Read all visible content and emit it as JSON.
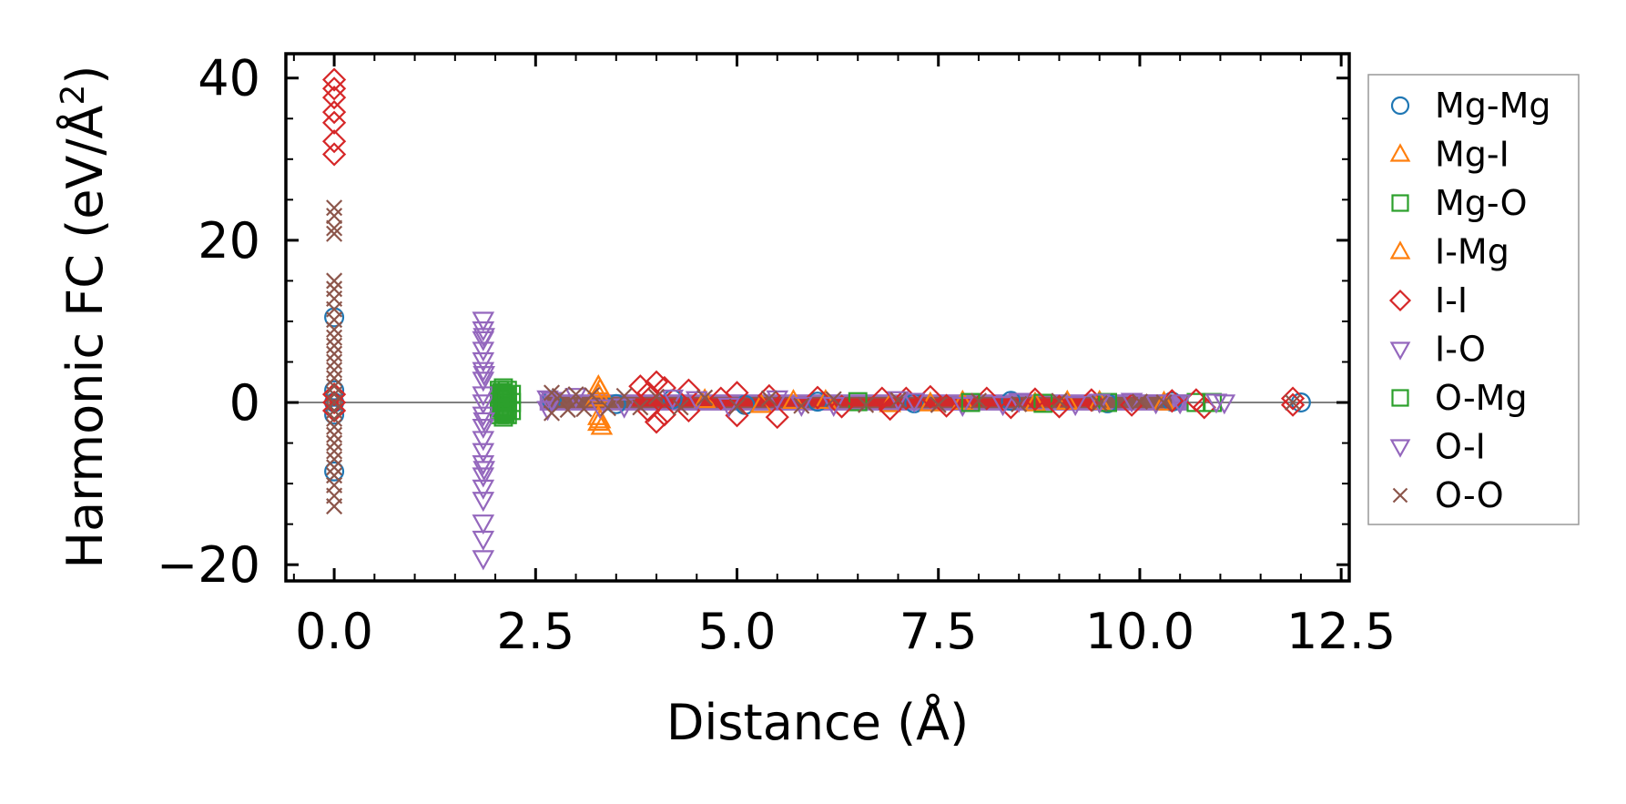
{
  "chart_data": {
    "type": "scatter",
    "title": "",
    "xlabel": "Distance (Å)",
    "ylabel_prefix": "Harmonic FC (eV/Å",
    "ylabel_sup": "2",
    "ylabel_suffix": ")",
    "xlim": [
      -0.6,
      12.6
    ],
    "ylim": [
      -22,
      43
    ],
    "x_ticks": [
      0.0,
      2.5,
      5.0,
      7.5,
      10.0,
      12.5
    ],
    "x_tick_labels": [
      "0.0",
      "2.5",
      "5.0",
      "7.5",
      "10.0",
      "12.5"
    ],
    "y_ticks": [
      -20,
      0,
      20,
      40
    ],
    "y_tick_labels": [
      "−20",
      "0",
      "20",
      "40"
    ],
    "zero_line": true,
    "legend_position": "right-outside",
    "series": [
      {
        "name": "Mg-Mg",
        "marker": "circle",
        "color": "#1f77b4",
        "points": [
          [
            0,
            0
          ],
          [
            0,
            1.5
          ],
          [
            0,
            -1.5
          ],
          [
            0,
            10.5
          ],
          [
            0,
            -8.5
          ],
          [
            2.7,
            0.3
          ],
          [
            3.5,
            -0.2
          ],
          [
            4.2,
            0.4
          ],
          [
            5.1,
            -0.3
          ],
          [
            6.0,
            0.1
          ],
          [
            7.2,
            -0.1
          ],
          [
            8.4,
            0.2
          ],
          [
            9.6,
            -0.1
          ],
          [
            10.4,
            0.1
          ],
          [
            12.0,
            0
          ]
        ]
      },
      {
        "name": "Mg-I",
        "marker": "triangle-up",
        "color": "#ff7f0e",
        "points": [
          [
            3.28,
            2.0
          ],
          [
            3.28,
            1.0
          ],
          [
            3.28,
            -1.8
          ],
          [
            3.28,
            -2.5
          ],
          [
            3.32,
            -3.0
          ],
          [
            4.6,
            0.3
          ],
          [
            5.3,
            -0.3
          ],
          [
            6.1,
            0.2
          ],
          [
            6.9,
            -0.2
          ],
          [
            7.8,
            0.1
          ],
          [
            8.7,
            -0.1
          ],
          [
            9.5,
            0.1
          ],
          [
            10.3,
            0
          ]
        ]
      },
      {
        "name": "Mg-O",
        "marker": "square",
        "color": "#2ca02c",
        "points": [
          [
            2.05,
            1.5
          ],
          [
            2.05,
            1.0
          ],
          [
            2.05,
            0.5
          ],
          [
            2.05,
            0
          ],
          [
            2.05,
            -0.5
          ],
          [
            2.05,
            -1.0
          ],
          [
            2.05,
            -1.5
          ],
          [
            2.1,
            1.8
          ],
          [
            2.1,
            1.2
          ],
          [
            2.1,
            0.6
          ],
          [
            2.1,
            0
          ],
          [
            2.1,
            -0.6
          ],
          [
            2.1,
            -1.2
          ],
          [
            2.1,
            -1.8
          ],
          [
            2.15,
            1.5
          ],
          [
            2.15,
            0.8
          ],
          [
            2.15,
            0
          ],
          [
            2.15,
            -0.8
          ],
          [
            2.15,
            -1.5
          ],
          [
            2.2,
            1.0
          ],
          [
            2.2,
            0
          ],
          [
            2.2,
            -1.0
          ],
          [
            6.5,
            0.1
          ],
          [
            8.8,
            -0.1
          ],
          [
            10.7,
            0
          ]
        ]
      },
      {
        "name": "I-Mg",
        "marker": "triangle-up",
        "color": "#ff7f0e",
        "points": [
          [
            3.3,
            1.6
          ],
          [
            3.3,
            -2.2
          ],
          [
            3.25,
            0.5
          ],
          [
            5.7,
            0.2
          ],
          [
            7.4,
            -0.1
          ],
          [
            9.1,
            0.1
          ]
        ]
      },
      {
        "name": "I-I",
        "marker": "diamond",
        "color": "#d62728",
        "points": [
          [
            0,
            39.8
          ],
          [
            0,
            38.7
          ],
          [
            0,
            37.6
          ],
          [
            0,
            35.8
          ],
          [
            0,
            34.5
          ],
          [
            0,
            32.2
          ],
          [
            0,
            30.6
          ],
          [
            0,
            1.0
          ],
          [
            0,
            0
          ],
          [
            0,
            -1.0
          ],
          [
            3.8,
            2.0
          ],
          [
            3.9,
            1.2
          ],
          [
            3.9,
            -1.0
          ],
          [
            4.0,
            2.5
          ],
          [
            4.0,
            -2.4
          ],
          [
            4.1,
            1.8
          ],
          [
            4.1,
            -1.5
          ],
          [
            4.4,
            1.5
          ],
          [
            4.4,
            -1.0
          ],
          [
            4.8,
            0.5
          ],
          [
            5.0,
            1.2
          ],
          [
            5.0,
            -1.6
          ],
          [
            5.4,
            0.8
          ],
          [
            5.5,
            -1.8
          ],
          [
            6.0,
            0.6
          ],
          [
            6.3,
            -0.5
          ],
          [
            6.8,
            0.5
          ],
          [
            6.9,
            -0.8
          ],
          [
            7.1,
            0.5
          ],
          [
            7.4,
            0.7
          ],
          [
            7.6,
            -0.4
          ],
          [
            8.1,
            0.5
          ],
          [
            8.4,
            -0.6
          ],
          [
            8.7,
            0.4
          ],
          [
            9.0,
            -0.5
          ],
          [
            9.4,
            0.3
          ],
          [
            9.9,
            -0.3
          ],
          [
            10.4,
            0.2
          ],
          [
            10.7,
            0.3
          ],
          [
            10.8,
            -0.6
          ],
          [
            11.9,
            0.5
          ],
          [
            11.9,
            -0.3
          ]
        ]
      },
      {
        "name": "I-O",
        "marker": "triangle-down",
        "color": "#9467bd",
        "points": [
          [
            1.85,
            10.2
          ],
          [
            1.85,
            9.0
          ],
          [
            1.85,
            7.8
          ],
          [
            1.85,
            6.5
          ],
          [
            1.85,
            5.2
          ],
          [
            1.85,
            4.0
          ],
          [
            1.85,
            2.8
          ],
          [
            1.85,
            1.0
          ],
          [
            1.85,
            0
          ],
          [
            1.85,
            -1.5
          ],
          [
            1.85,
            -3.0
          ],
          [
            1.85,
            -4.5
          ],
          [
            1.85,
            -6.0
          ],
          [
            1.85,
            -7.5
          ],
          [
            1.85,
            -9.0
          ],
          [
            1.85,
            -10.5
          ],
          [
            1.85,
            -12.0
          ],
          [
            1.85,
            -14.8
          ],
          [
            1.85,
            -16.8
          ],
          [
            1.85,
            -19.2
          ],
          [
            2.65,
            0.5
          ],
          [
            2.65,
            -0.8
          ],
          [
            3.0,
            0.8
          ],
          [
            3.6,
            -0.5
          ],
          [
            4.2,
            0.6
          ],
          [
            4.9,
            -0.4
          ],
          [
            5.5,
            0.5
          ],
          [
            6.2,
            -0.3
          ],
          [
            7.0,
            0.4
          ],
          [
            7.8,
            -0.3
          ],
          [
            8.5,
            0.2
          ],
          [
            9.2,
            -0.2
          ],
          [
            9.9,
            0.2
          ],
          [
            10.5,
            0
          ],
          [
            11.05,
            0
          ]
        ]
      },
      {
        "name": "O-Mg",
        "marker": "square",
        "color": "#2ca02c",
        "points": [
          [
            2.08,
            1.2
          ],
          [
            2.08,
            0.3
          ],
          [
            2.08,
            -0.7
          ],
          [
            2.12,
            -1.3
          ],
          [
            2.12,
            0.9
          ],
          [
            7.9,
            0
          ],
          [
            9.6,
            0
          ],
          [
            10.9,
            0
          ]
        ]
      },
      {
        "name": "O-I",
        "marker": "triangle-down",
        "color": "#9467bd",
        "points": [
          [
            1.86,
            8.2
          ],
          [
            1.86,
            3.5
          ],
          [
            1.86,
            -2.2
          ],
          [
            1.86,
            -8.2
          ],
          [
            2.7,
            0.3
          ],
          [
            3.3,
            -0.6
          ],
          [
            4.5,
            0.4
          ],
          [
            5.8,
            -0.3
          ],
          [
            7.2,
            0.2
          ],
          [
            8.3,
            -0.2
          ],
          [
            9.5,
            0.1
          ],
          [
            10.2,
            0
          ],
          [
            10.95,
            0.1
          ]
        ]
      },
      {
        "name": "O-O",
        "marker": "x",
        "color": "#8c564b",
        "points": [
          [
            0,
            24.0
          ],
          [
            0,
            23.0
          ],
          [
            0,
            21.5
          ],
          [
            0,
            20.8
          ],
          [
            0,
            15.0
          ],
          [
            0,
            14.0
          ],
          [
            0,
            12.8
          ],
          [
            0,
            11.5
          ],
          [
            0,
            10.2
          ],
          [
            0,
            9.0
          ],
          [
            0,
            8.0
          ],
          [
            0,
            7.0
          ],
          [
            0,
            6.0
          ],
          [
            0,
            5.0
          ],
          [
            0,
            4.0
          ],
          [
            0,
            3.0
          ],
          [
            0,
            2.0
          ],
          [
            0,
            1.0
          ],
          [
            0,
            0
          ],
          [
            0,
            -1.0
          ],
          [
            0,
            -2.0
          ],
          [
            0,
            -3.0
          ],
          [
            0,
            -4.0
          ],
          [
            0,
            -5.0
          ],
          [
            0,
            -6.0
          ],
          [
            0,
            -7.0
          ],
          [
            0,
            -8.0
          ],
          [
            0,
            -9.0
          ],
          [
            0,
            -10.2
          ],
          [
            0,
            -11.5
          ],
          [
            0,
            -12.8
          ],
          [
            2.7,
            1.2
          ],
          [
            2.7,
            -1.3
          ],
          [
            2.8,
            0.8
          ],
          [
            2.9,
            -0.9
          ],
          [
            3.0,
            1.0
          ],
          [
            3.1,
            -0.8
          ],
          [
            3.2,
            0.9
          ],
          [
            3.4,
            -0.7
          ],
          [
            3.6,
            0.8
          ],
          [
            3.8,
            -0.6
          ],
          [
            4.0,
            0.7
          ],
          [
            4.3,
            -0.6
          ],
          [
            4.6,
            0.6
          ],
          [
            5.0,
            -0.5
          ],
          [
            5.4,
            0.5
          ],
          [
            5.8,
            -0.4
          ],
          [
            6.2,
            0.4
          ],
          [
            6.6,
            -0.3
          ],
          [
            7.0,
            0.3
          ],
          [
            7.5,
            -0.3
          ],
          [
            8.0,
            0.2
          ],
          [
            8.5,
            -0.2
          ],
          [
            9.0,
            0.2
          ],
          [
            9.5,
            -0.1
          ],
          [
            10.0,
            0.1
          ],
          [
            10.3,
            0
          ],
          [
            11.9,
            0
          ]
        ]
      }
    ],
    "bands": [
      {
        "name": "Mg-O",
        "color": "#2ca02c",
        "x0": 2.0,
        "x1": 2.25,
        "y0": -2.0,
        "y1": 2.0
      },
      {
        "name": "I-O",
        "color": "#9467bd",
        "x0": 2.55,
        "x1": 10.6,
        "y0": -1.0,
        "y1": 1.0
      },
      {
        "name": "O-O",
        "color": "#8c564b",
        "x0": 2.6,
        "x1": 10.4,
        "y0": -0.7,
        "y1": 0.7
      },
      {
        "name": "I-I",
        "color": "#d62728",
        "x0": 3.7,
        "x1": 9.5,
        "y0": -0.5,
        "y1": 0.5
      }
    ]
  }
}
